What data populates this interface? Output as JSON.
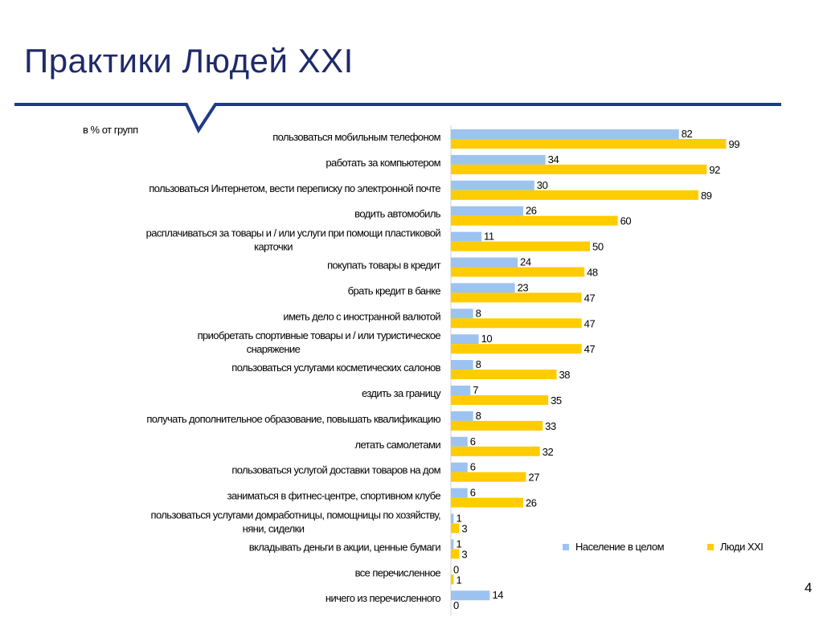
{
  "slide": {
    "title": "Практики Людей XXI",
    "unit_note": "в % от групп",
    "page_number": "4",
    "accent_color": "#1f3a8c"
  },
  "chart_data": {
    "type": "bar",
    "orientation": "horizontal",
    "categories": [
      "пользоваться мобильным телефоном",
      "работать за компьютером",
      "пользоваться Интернетом, вести переписку по электронной почте",
      "водить автомобиль",
      "расплачиваться за товары и / или услуги при помощи пластиковой карточки",
      "покупать товары в кредит",
      "брать кредит в банке",
      "иметь дело с иностранной валютой",
      "приобретать спортивные товары и / или туристическое снаряжение",
      "пользоваться  услугами косметических салонов",
      "ездить за границу",
      "получать дополнительное образование, повышать квалификацию",
      "летать самолетами",
      "пользоваться услугой доставки товаров на дом",
      "заниматься в фитнес-центре, спортивном клубе",
      "пользоваться услугами домработницы, помощницы по хозяйству, няни, сиделки",
      "вкладывать деньги в акции, ценные бумаги",
      "все перечисленное",
      "ничего из перечисленного"
    ],
    "category_lines": [
      [
        "пользоваться мобильным телефоном"
      ],
      [
        "работать за компьютером"
      ],
      [
        "пользоваться Интернетом, вести переписку по электронной почте"
      ],
      [
        "водить автомобиль"
      ],
      [
        "расплачиваться за товары и / или услуги при помощи пластиковой",
        "карточки"
      ],
      [
        "покупать товары в кредит"
      ],
      [
        "брать кредит в банке"
      ],
      [
        "иметь дело с иностранной валютой"
      ],
      [
        "приобретать спортивные товары и / или туристическое",
        "снаряжение"
      ],
      [
        "пользоваться  услугами косметических салонов"
      ],
      [
        "ездить за границу"
      ],
      [
        "получать дополнительное образование, повышать квалификацию"
      ],
      [
        "летать самолетами"
      ],
      [
        "пользоваться услугой доставки товаров на дом"
      ],
      [
        "заниматься в фитнес-центре, спортивном клубе"
      ],
      [
        "пользоваться услугами домработницы, помощницы по хозяйству,",
        "няни, сиделки"
      ],
      [
        "вкладывать деньги в акции, ценные бумаги"
      ],
      [
        "все перечисленное"
      ],
      [
        "ничего из перечисленного"
      ]
    ],
    "series": [
      {
        "name": "Население в целом",
        "color": "#9dc3f0",
        "values": [
          82,
          34,
          30,
          26,
          11,
          24,
          23,
          8,
          10,
          8,
          7,
          8,
          6,
          6,
          6,
          1,
          1,
          0,
          14
        ]
      },
      {
        "name": "Люди XXI",
        "color": "#ffcc00",
        "values": [
          99,
          92,
          89,
          60,
          50,
          48,
          47,
          47,
          47,
          38,
          35,
          33,
          32,
          27,
          26,
          3,
          3,
          1,
          0
        ]
      }
    ],
    "xlim": [
      0,
      100
    ],
    "axis_visible": false,
    "grid": false,
    "legend_position": "bottom-right"
  }
}
